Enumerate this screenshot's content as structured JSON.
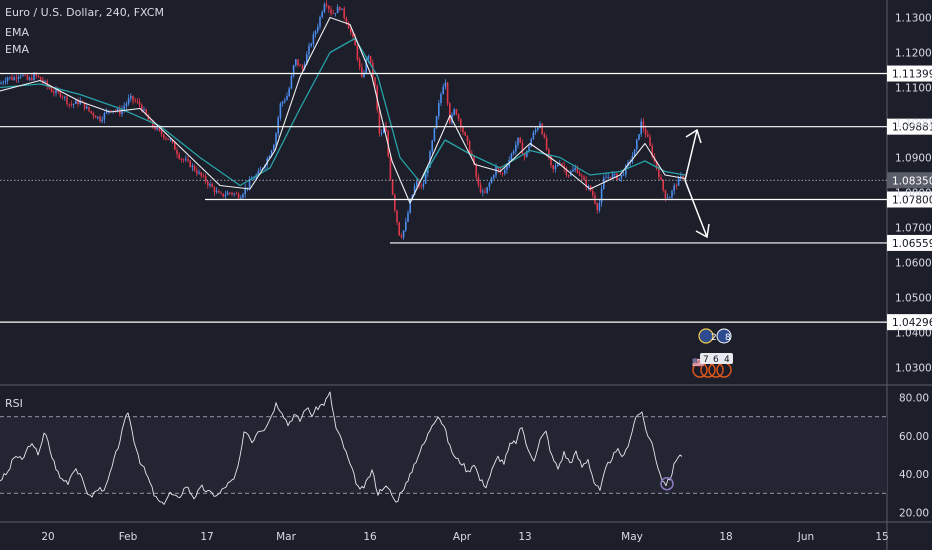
{
  "chart_data": [
    {
      "type": "candlestick",
      "title": "Euro / U.S. Dollar, 240, FXCM",
      "indicators": [
        "EMA",
        "EMA"
      ],
      "ylim": [
        1.025,
        1.135
      ],
      "y_ticks": [
        "1.13000",
        "1.12000",
        "1.11000",
        "1.10000",
        "1.09000",
        "1.08000",
        "1.07000",
        "1.06000",
        "1.05000",
        "1.04000",
        "1.03000"
      ],
      "x_ticks": [
        "20",
        "Feb",
        "17",
        "Mar",
        "16",
        "Apr",
        "13",
        "May",
        "18",
        "Jun",
        "15"
      ],
      "last_price": "1.08350",
      "horizontal_levels": [
        {
          "price": 1.11399,
          "label": "1.11399",
          "scope": "full"
        },
        {
          "price": 1.09881,
          "label": "1.09881",
          "scope": "full"
        },
        {
          "price": 1.078,
          "label": "1.07800",
          "scope": "partial"
        },
        {
          "price": 1.06559,
          "label": "1.06559",
          "scope": "partial"
        },
        {
          "price": 1.04296,
          "label": "1.04296",
          "scope": "full"
        }
      ],
      "price_path": [
        [
          0,
          1.111
        ],
        [
          7,
          1.113
        ],
        [
          13,
          1.1125
        ],
        [
          20,
          1.114
        ],
        [
          28,
          1.112
        ],
        [
          35,
          1.1135
        ],
        [
          42,
          1.112
        ],
        [
          52,
          1.109
        ],
        [
          62,
          1.108
        ],
        [
          70,
          1.105
        ],
        [
          80,
          1.106
        ],
        [
          90,
          1.103
        ],
        [
          100,
          1.101
        ],
        [
          110,
          1.104
        ],
        [
          120,
          1.103
        ],
        [
          130,
          1.107
        ],
        [
          140,
          1.105
        ],
        [
          150,
          1.1
        ],
        [
          160,
          1.097
        ],
        [
          170,
          1.095
        ],
        [
          180,
          1.09
        ],
        [
          190,
          1.088
        ],
        [
          200,
          1.085
        ],
        [
          210,
          1.082
        ],
        [
          220,
          1.079
        ],
        [
          230,
          1.08
        ],
        [
          240,
          1.079
        ],
        [
          250,
          1.083
        ],
        [
          260,
          1.086
        ],
        [
          268,
          1.09
        ],
        [
          275,
          1.095
        ],
        [
          280,
          1.105
        ],
        [
          288,
          1.108
        ],
        [
          295,
          1.118
        ],
        [
          302,
          1.115
        ],
        [
          310,
          1.122
        ],
        [
          318,
          1.128
        ],
        [
          325,
          1.135
        ],
        [
          332,
          1.131
        ],
        [
          340,
          1.133
        ],
        [
          348,
          1.128
        ],
        [
          355,
          1.122
        ],
        [
          362,
          1.112
        ],
        [
          368,
          1.12
        ],
        [
          375,
          1.11
        ],
        [
          380,
          1.095
        ],
        [
          385,
          1.1
        ],
        [
          390,
          1.085
        ],
        [
          395,
          1.075
        ],
        [
          400,
          1.067
        ],
        [
          405,
          1.07
        ],
        [
          410,
          1.077
        ],
        [
          416,
          1.083
        ],
        [
          422,
          1.081
        ],
        [
          428,
          1.088
        ],
        [
          434,
          1.097
        ],
        [
          440,
          1.107
        ],
        [
          445,
          1.113
        ],
        [
          450,
          1.1
        ],
        [
          455,
          1.104
        ],
        [
          460,
          1.1
        ],
        [
          466,
          1.095
        ],
        [
          472,
          1.09
        ],
        [
          478,
          1.082
        ],
        [
          484,
          1.079
        ],
        [
          490,
          1.083
        ],
        [
          496,
          1.087
        ],
        [
          502,
          1.085
        ],
        [
          510,
          1.09
        ],
        [
          518,
          1.095
        ],
        [
          525,
          1.09
        ],
        [
          532,
          1.096
        ],
        [
          540,
          1.1
        ],
        [
          546,
          1.093
        ],
        [
          552,
          1.086
        ],
        [
          560,
          1.089
        ],
        [
          568,
          1.085
        ],
        [
          576,
          1.087
        ],
        [
          584,
          1.083
        ],
        [
          592,
          1.08
        ],
        [
          598,
          1.075
        ],
        [
          604,
          1.084
        ],
        [
          612,
          1.085
        ],
        [
          620,
          1.084
        ],
        [
          628,
          1.088
        ],
        [
          635,
          1.092
        ],
        [
          641,
          1.1
        ],
        [
          647,
          1.096
        ],
        [
          653,
          1.09
        ],
        [
          659,
          1.085
        ],
        [
          665,
          1.079
        ],
        [
          670,
          1.079
        ],
        [
          675,
          1.082
        ],
        [
          680,
          1.084
        ],
        [
          685,
          1.085
        ]
      ],
      "ema_fast": [
        [
          0,
          1.109
        ],
        [
          40,
          1.112
        ],
        [
          80,
          1.106
        ],
        [
          110,
          1.103
        ],
        [
          140,
          1.104
        ],
        [
          180,
          1.093
        ],
        [
          220,
          1.082
        ],
        [
          250,
          1.081
        ],
        [
          275,
          1.092
        ],
        [
          300,
          1.113
        ],
        [
          330,
          1.13
        ],
        [
          350,
          1.128
        ],
        [
          372,
          1.113
        ],
        [
          392,
          1.089
        ],
        [
          410,
          1.077
        ],
        [
          430,
          1.089
        ],
        [
          450,
          1.102
        ],
        [
          475,
          1.088
        ],
        [
          500,
          1.086
        ],
        [
          530,
          1.094
        ],
        [
          560,
          1.088
        ],
        [
          590,
          1.081
        ],
        [
          620,
          1.085
        ],
        [
          645,
          1.094
        ],
        [
          665,
          1.085
        ],
        [
          685,
          1.084
        ]
      ],
      "ema_slow": [
        [
          0,
          1.11
        ],
        [
          40,
          1.111
        ],
        [
          80,
          1.108
        ],
        [
          120,
          1.104
        ],
        [
          160,
          1.099
        ],
        [
          200,
          1.09
        ],
        [
          240,
          1.082
        ],
        [
          270,
          1.087
        ],
        [
          300,
          1.104
        ],
        [
          330,
          1.12
        ],
        [
          355,
          1.124
        ],
        [
          378,
          1.113
        ],
        [
          400,
          1.09
        ],
        [
          420,
          1.083
        ],
        [
          445,
          1.095
        ],
        [
          470,
          1.091
        ],
        [
          500,
          1.087
        ],
        [
          530,
          1.092
        ],
        [
          560,
          1.09
        ],
        [
          590,
          1.085
        ],
        [
          620,
          1.086
        ],
        [
          645,
          1.089
        ],
        [
          665,
          1.086
        ],
        [
          685,
          1.085
        ]
      ]
    },
    {
      "type": "line",
      "title": "RSI",
      "ylim": [
        15,
        85
      ],
      "y_ticks": [
        "80.00",
        "60.00",
        "40.00",
        "20.00"
      ],
      "reference_lines": [
        70,
        30
      ],
      "values": [
        [
          0,
          37
        ],
        [
          8,
          41
        ],
        [
          15,
          50
        ],
        [
          22,
          47
        ],
        [
          30,
          56
        ],
        [
          38,
          51
        ],
        [
          45,
          62
        ],
        [
          52,
          49
        ],
        [
          60,
          38
        ],
        [
          68,
          36
        ],
        [
          75,
          44
        ],
        [
          82,
          37
        ],
        [
          90,
          28
        ],
        [
          98,
          32
        ],
        [
          106,
          33
        ],
        [
          114,
          47
        ],
        [
          120,
          58
        ],
        [
          128,
          73
        ],
        [
          133,
          60
        ],
        [
          140,
          47
        ],
        [
          148,
          38
        ],
        [
          155,
          28
        ],
        [
          162,
          24
        ],
        [
          170,
          30
        ],
        [
          178,
          27
        ],
        [
          186,
          34
        ],
        [
          194,
          28
        ],
        [
          202,
          33
        ],
        [
          210,
          30
        ],
        [
          218,
          29
        ],
        [
          226,
          34
        ],
        [
          234,
          37
        ],
        [
          240,
          48
        ],
        [
          245,
          64
        ],
        [
          252,
          57
        ],
        [
          258,
          63
        ],
        [
          264,
          64
        ],
        [
          270,
          69
        ],
        [
          276,
          77
        ],
        [
          282,
          73
        ],
        [
          288,
          66
        ],
        [
          294,
          71
        ],
        [
          300,
          68
        ],
        [
          306,
          75
        ],
        [
          312,
          71
        ],
        [
          318,
          75
        ],
        [
          324,
          77
        ],
        [
          330,
          82
        ],
        [
          336,
          64
        ],
        [
          342,
          57
        ],
        [
          348,
          48
        ],
        [
          354,
          39
        ],
        [
          360,
          31
        ],
        [
          366,
          35
        ],
        [
          372,
          42
        ],
        [
          378,
          30
        ],
        [
          384,
          34
        ],
        [
          390,
          31
        ],
        [
          396,
          25
        ],
        [
          402,
          32
        ],
        [
          408,
          36
        ],
        [
          414,
          45
        ],
        [
          420,
          52
        ],
        [
          426,
          58
        ],
        [
          432,
          66
        ],
        [
          438,
          71
        ],
        [
          444,
          65
        ],
        [
          450,
          54
        ],
        [
          456,
          48
        ],
        [
          462,
          46
        ],
        [
          468,
          41
        ],
        [
          474,
          46
        ],
        [
          480,
          37
        ],
        [
          486,
          34
        ],
        [
          492,
          42
        ],
        [
          498,
          49
        ],
        [
          504,
          46
        ],
        [
          510,
          55
        ],
        [
          516,
          57
        ],
        [
          522,
          65
        ],
        [
          528,
          52
        ],
        [
          534,
          48
        ],
        [
          540,
          58
        ],
        [
          546,
          62
        ],
        [
          552,
          49
        ],
        [
          558,
          43
        ],
        [
          564,
          51
        ],
        [
          570,
          46
        ],
        [
          576,
          51
        ],
        [
          582,
          44
        ],
        [
          588,
          48
        ],
        [
          594,
          36
        ],
        [
          600,
          31
        ],
        [
          606,
          43
        ],
        [
          612,
          49
        ],
        [
          618,
          52
        ],
        [
          624,
          49
        ],
        [
          630,
          59
        ],
        [
          636,
          70
        ],
        [
          641,
          73
        ],
        [
          646,
          63
        ],
        [
          652,
          56
        ],
        [
          658,
          44
        ],
        [
          663,
          36
        ],
        [
          667,
          35
        ],
        [
          671,
          39
        ],
        [
          675,
          46
        ],
        [
          679,
          51
        ],
        [
          683,
          48
        ]
      ]
    }
  ],
  "colors": {
    "background": "#1c1e2a",
    "bull": "#4d8ff0",
    "bear": "#e0384a",
    "ema_fast": "#f0f0f2",
    "ema_slow": "#27a3a8",
    "rsi": "#e6e6ea",
    "text": "#d8dae3"
  },
  "ui": {
    "events_flag": "🇺🇸",
    "event_counts": [
      "2",
      "8",
      "7",
      "6",
      "4"
    ]
  }
}
